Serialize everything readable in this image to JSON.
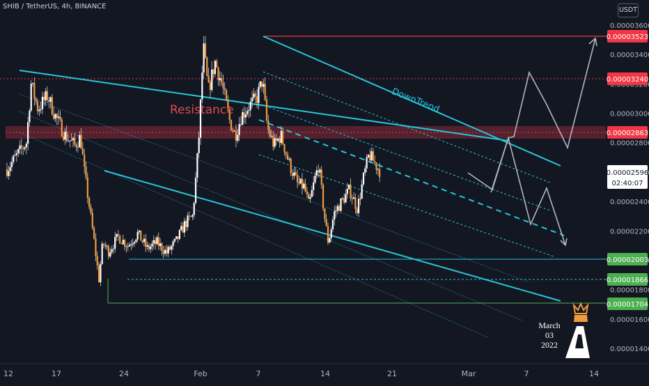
{
  "header": {
    "symbol_line": "SHIB / TetherUS, 4h, BINANCE"
  },
  "currency_badge": "USDT",
  "annotations": {
    "resistance": "Resistance",
    "downtrend": "DownTrend",
    "date_note": [
      "March",
      "03",
      "2022"
    ]
  },
  "colors": {
    "background": "#131722",
    "candle": "#f29b3d",
    "cyan": "#26c6da",
    "red": "#f23645",
    "green": "#4caf50",
    "grey_path": "#b2b5be",
    "resistance_zone": "#8b2a3b"
  },
  "chart_data": {
    "type": "candlestick",
    "title": "SHIB / TetherUS, 4h, BINANCE",
    "x_ticks": [
      "12",
      "17",
      "24",
      "Feb",
      "7",
      "14",
      "21",
      "Mar",
      "7",
      "14"
    ],
    "y_ticks": [
      3.6e-05,
      3.4e-05,
      3.2e-05,
      3e-05,
      2.8e-05,
      2.6e-05,
      2.4e-05,
      2.2e-05,
      2e-05,
      1.8e-05,
      1.6e-05,
      1.4e-05
    ],
    "y_tick_labels": [
      "0.00003600",
      "0.00003400",
      "0.00003200",
      "0.00003000",
      "0.00002800",
      "0.00002600",
      "0.00002400",
      "0.00002200",
      "0.00002000",
      "0.00001800",
      "0.00001600",
      "0.00001400"
    ],
    "ylim": [
      1.33e-05,
      3.65e-05
    ],
    "price_levels": [
      {
        "label": "0.00003523",
        "value": 3.523e-05,
        "color": "red"
      },
      {
        "label": "0.00003240",
        "value": 3.24e-05,
        "color": "red"
      },
      {
        "label": "0.00002863",
        "value": 2.863e-05,
        "color": "red"
      },
      {
        "label": "0.00002003",
        "value": 2.003e-05,
        "color": "green"
      },
      {
        "label": "0.00001866",
        "value": 1.866e-05,
        "color": "green"
      },
      {
        "label": "0.00001704",
        "value": 1.704e-05,
        "color": "green"
      }
    ],
    "current_price": {
      "label": "0.00002596",
      "value": 2.596e-05,
      "countdown": "02:40:07"
    },
    "price_path": [
      [
        0.0,
        2.62e-05
      ],
      [
        2.0,
        2.8e-05
      ],
      [
        2.5,
        3.2e-05
      ],
      [
        3.2,
        3.03e-05
      ],
      [
        4.2,
        3.12e-05
      ],
      [
        5.0,
        2.98e-05
      ],
      [
        6.0,
        2.85e-05
      ],
      [
        7.0,
        2.78e-05
      ],
      [
        7.6,
        2.84e-05
      ],
      [
        8.0,
        2.6e-05
      ],
      [
        8.5,
        2.37e-05
      ],
      [
        9.0,
        2.13e-05
      ],
      [
        9.5,
        1.87e-05
      ],
      [
        9.9,
        2.12e-05
      ],
      [
        10.5,
        2.06e-05
      ],
      [
        11.5,
        2.16e-05
      ],
      [
        12.5,
        2.1e-05
      ],
      [
        13.5,
        2.18e-05
      ],
      [
        14.5,
        2.08e-05
      ],
      [
        15.5,
        2.12e-05
      ],
      [
        16.5,
        2.05e-05
      ],
      [
        17.5,
        2.13e-05
      ],
      [
        18.4,
        2.25e-05
      ],
      [
        19.2,
        2.3e-05
      ],
      [
        19.8,
        2.8e-05
      ],
      [
        20.3,
        3.45e-05
      ],
      [
        20.8,
        3.15e-05
      ],
      [
        21.5,
        3.35e-05
      ],
      [
        22.2,
        3.2e-05
      ],
      [
        23.0,
        2.95e-05
      ],
      [
        23.6,
        2.85e-05
      ],
      [
        24.2,
        2.98e-05
      ],
      [
        25.0,
        3.05e-05
      ],
      [
        25.8,
        3.1e-05
      ],
      [
        26.4,
        3.23e-05
      ],
      [
        26.9,
        2.9e-05
      ],
      [
        27.6,
        2.78e-05
      ],
      [
        28.3,
        2.85e-05
      ],
      [
        29.2,
        2.65e-05
      ],
      [
        30.0,
        2.52e-05
      ],
      [
        30.7,
        2.5e-05
      ],
      [
        31.2,
        2.37e-05
      ],
      [
        31.8,
        2.55e-05
      ],
      [
        32.2,
        2.65e-05
      ],
      [
        32.8,
        2.3e-05
      ],
      [
        33.2,
        2.12e-05
      ],
      [
        33.8,
        2.32e-05
      ],
      [
        34.6,
        2.4e-05
      ],
      [
        35.4,
        2.48e-05
      ],
      [
        36.2,
        2.35e-05
      ],
      [
        36.8,
        2.55e-05
      ],
      [
        37.4,
        2.72e-05
      ],
      [
        38.2,
        2.64e-05
      ],
      [
        38.6,
        2.6e-05
      ]
    ]
  }
}
